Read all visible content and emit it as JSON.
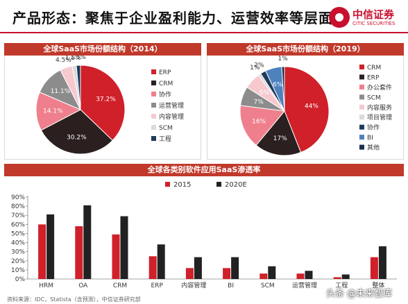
{
  "header": {
    "title": "产品形态：聚焦于企业盈利能力、运营效率等层面",
    "logo_cn": "中信证券",
    "logo_en": "CITIC SECURITIES"
  },
  "colors": {
    "accent": "#c0392b",
    "ERP": "#d0202a",
    "CRM": "#2b1f1f",
    "xiezuo": "#ef7f8c",
    "yunying": "#8c8c8c",
    "neirong": "#f6c9cf",
    "SCM": "#d9d9d9",
    "gongcheng": "#1f3b5c",
    "BI": "#4f81bd",
    "qita": "#1c2e4a",
    "bar2015": "#d0202a",
    "bar2020": "#222222"
  },
  "chart_data": [
    {
      "type": "pie",
      "title": "全球SaaS市场份额结构（2014）",
      "slices": [
        {
          "label": "ERP",
          "value": 37.2,
          "color_key": "ERP",
          "label_text": "37.2%"
        },
        {
          "label": "CRM",
          "value": 30.2,
          "color_key": "CRM",
          "label_text": "30.2%"
        },
        {
          "label": "协作",
          "value": 14.1,
          "color_key": "xiezuo",
          "label_text": "14.1%"
        },
        {
          "label": "运营管理",
          "value": 11.1,
          "color_key": "yunying",
          "label_text": "11.1%"
        },
        {
          "label": "内容管理",
          "value": 4.5,
          "color_key": "neirong",
          "label_text": "4.5%"
        },
        {
          "label": "SCM",
          "value": 1.5,
          "color_key": "SCM",
          "label_text": "1.5%"
        },
        {
          "label": "工程",
          "value": 1.5,
          "color_key": "gongcheng",
          "label_text": "1.5%"
        }
      ],
      "legend": [
        "ERP",
        "CRM",
        "协作",
        "运营管理",
        "内容管理",
        "SCM",
        "工程"
      ],
      "legend_placement": "right"
    },
    {
      "type": "pie",
      "title": "全球SaaS市场份额结构（2019）",
      "slices": [
        {
          "label": "CRM",
          "value": 44,
          "color_key": "ERP",
          "label_text": "44%"
        },
        {
          "label": "ERP",
          "value": 17,
          "color_key": "CRM",
          "label_text": "17%"
        },
        {
          "label": "办公套件",
          "value": 16,
          "color_key": "xiezuo",
          "label_text": "16%"
        },
        {
          "label": "SCM",
          "value": 7,
          "color_key": "yunying",
          "label_text": "7%"
        },
        {
          "label": "内容服务",
          "value": 6,
          "color_key": "neirong",
          "label_text": "6%"
        },
        {
          "label": "项目管理",
          "value": 1,
          "color_key": "SCM",
          "label_text": "1%"
        },
        {
          "label": "协作",
          "value": 2,
          "color_key": "gongcheng",
          "label_text": "2%"
        },
        {
          "label": "BI",
          "value": 6,
          "color_key": "BI",
          "label_text": "6%"
        },
        {
          "label": "其他",
          "value": 1,
          "color_key": "qita",
          "label_text": "1%"
        }
      ],
      "legend": [
        "CRM",
        "ERP",
        "办公套件",
        "SCM",
        "内容服务",
        "项目管理",
        "协作",
        "BI",
        "其他"
      ],
      "legend_placement": "right"
    },
    {
      "type": "bar",
      "title": "全球各类别软件应用SaaS渗透率",
      "categories": [
        "HRM",
        "OA",
        "CRM",
        "ERP",
        "内容管理",
        "BI",
        "SCM",
        "运营管理",
        "工程",
        "整体"
      ],
      "series": [
        {
          "name": "2015",
          "color_key": "bar2015",
          "values": [
            60,
            58,
            49,
            25,
            12,
            12,
            6,
            6,
            2,
            24
          ]
        },
        {
          "name": "2020E",
          "color_key": "bar2020",
          "values": [
            71,
            81,
            69,
            38,
            24,
            24,
            14,
            9,
            5,
            36
          ]
        }
      ],
      "ylim": [
        0,
        90
      ],
      "yticks": [
        "0%",
        "10%",
        "20%",
        "30%",
        "40%",
        "50%",
        "60%",
        "70%",
        "80%",
        "90%"
      ],
      "grid": false,
      "legend_placement": "top"
    }
  ],
  "footer": {
    "source": "资料来源：IDC，Statista（含预测），中信证券研究部",
    "watermark": "头条 @未来智库"
  }
}
